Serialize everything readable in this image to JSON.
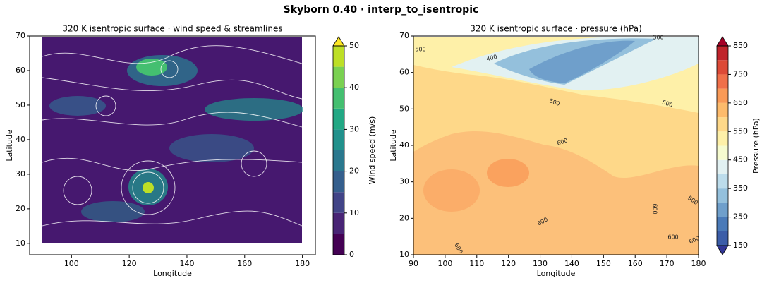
{
  "title": "Skyborn 0.40 · interp_to_isentropic",
  "chart_data": [
    {
      "type": "contourf",
      "title": "320 K isentropic surface · wind speed & streamlines",
      "xlabel": "Longitude",
      "ylabel": "Latitude",
      "xlim": [
        85.5,
        184.5
      ],
      "ylim": [
        6.7,
        70
      ],
      "xticks": [
        100,
        120,
        140,
        160,
        180
      ],
      "yticks": [
        10,
        20,
        30,
        40,
        50,
        60,
        70
      ],
      "colorbar": {
        "label": "Wind speed (m/s)",
        "levels": [
          0,
          5,
          10,
          15,
          20,
          25,
          30,
          35,
          40,
          45,
          50
        ],
        "colors": [
          "#440154",
          "#482475",
          "#414487",
          "#355f8d",
          "#2a788e",
          "#21918c",
          "#22a884",
          "#44bf70",
          "#7ad151",
          "#bddf26"
        ],
        "over_color": "#fde725",
        "ticks": [
          0,
          10,
          20,
          30,
          40,
          50
        ]
      }
    },
    {
      "type": "contourf",
      "title": "320 K isentropic surface · pressure (hPa)",
      "xlabel": "Longitude",
      "ylabel": "Latitude",
      "xlim": [
        90,
        180
      ],
      "ylim": [
        10,
        70
      ],
      "xticks": [
        90,
        100,
        110,
        120,
        130,
        140,
        150,
        160,
        170,
        180
      ],
      "yticks": [
        10,
        20,
        30,
        40,
        50,
        60,
        70
      ],
      "contour_labels": [
        300,
        400,
        500,
        500,
        500,
        500,
        600,
        600,
        600,
        600,
        600,
        600
      ],
      "colorbar": {
        "label": "Pressure (hPa)",
        "levels": [
          150,
          200,
          250,
          300,
          350,
          400,
          450,
          500,
          550,
          600,
          650,
          700,
          750,
          800,
          850
        ],
        "colors": [
          "#3b5da8",
          "#4a7ab8",
          "#6f9fcb",
          "#94c0dc",
          "#bcdceb",
          "#e2f1f2",
          "#f6fbcf",
          "#fef0a8",
          "#fed889",
          "#fdbb6c",
          "#f99a57",
          "#f0704a",
          "#dd4a37",
          "#c0242b"
        ],
        "under_color": "#313695",
        "over_color": "#a50026",
        "ticks": [
          150,
          250,
          350,
          450,
          550,
          650,
          750,
          850
        ]
      }
    }
  ]
}
